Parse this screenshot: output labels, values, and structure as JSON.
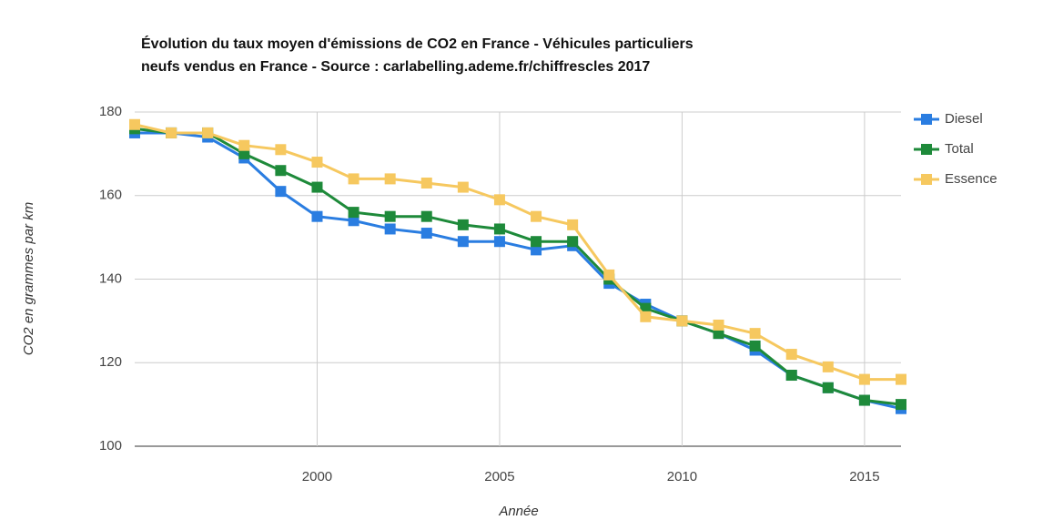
{
  "chart_data": {
    "type": "line",
    "title": [
      "Évolution du taux moyen d'émissions de CO2 en France - Véhicules particuliers",
      "neufs vendus en France - Source : carlabelling.ademe.fr/chiffrescles 2017"
    ],
    "xlabel": "Année",
    "ylabel": "CO2 en grammes par km",
    "x": [
      1995,
      1996,
      1997,
      1998,
      1999,
      2000,
      2001,
      2002,
      2003,
      2004,
      2005,
      2006,
      2007,
      2008,
      2009,
      2010,
      2011,
      2012,
      2013,
      2014,
      2015,
      2016
    ],
    "series": [
      {
        "name": "Diesel",
        "color": "#2a7de1",
        "values": [
          175,
          175,
          174,
          169,
          161,
          155,
          154,
          152,
          151,
          149,
          149,
          147,
          148,
          139,
          134,
          130,
          127,
          123,
          117,
          114,
          111,
          109
        ]
      },
      {
        "name": "Total",
        "color": "#1e8a3a",
        "values": [
          176,
          175,
          175,
          170,
          166,
          162,
          156,
          155,
          155,
          153,
          152,
          149,
          149,
          140,
          133,
          130,
          127,
          124,
          117,
          114,
          111,
          110
        ]
      },
      {
        "name": "Essence",
        "color": "#f6c85f",
        "values": [
          177,
          175,
          175,
          172,
          171,
          168,
          164,
          164,
          163,
          162,
          159,
          155,
          153,
          141,
          131,
          130,
          129,
          127,
          122,
          119,
          116,
          116
        ]
      }
    ],
    "xlim": [
      1995,
      2016
    ],
    "xticks": [
      2000,
      2005,
      2010,
      2015
    ],
    "ylim": [
      100,
      180
    ],
    "yticks": [
      100,
      120,
      140,
      160,
      180
    ],
    "grid": true,
    "legend": "right"
  }
}
